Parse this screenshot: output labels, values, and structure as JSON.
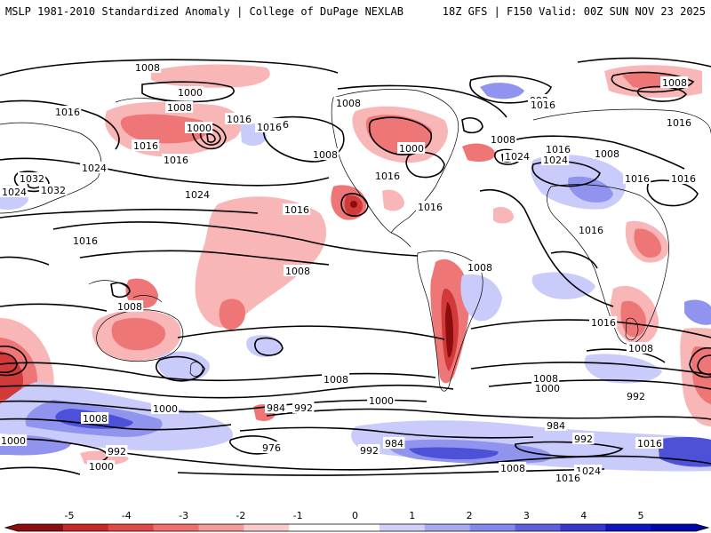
{
  "header": {
    "left_title": "MSLP 1981-2010 Standardized Anomaly | College of DuPage NEXLAB",
    "right_title": "18Z GFS | F150 Valid: 00Z SUN NOV 23 2025"
  },
  "colorbar": {
    "ticks": [
      "-5",
      "-4",
      "-3",
      "-2",
      "-1",
      "0",
      "1",
      "2",
      "3",
      "4",
      "5"
    ],
    "colors": [
      "#8b0d0d",
      "#c62828",
      "#e04848",
      "#ef6f6f",
      "#f59a9a",
      "#fbcaca",
      "#ffffff",
      "#ffffff",
      "#cfd1fb",
      "#a8abf4",
      "#8388ea",
      "#5c60dc",
      "#3438cf",
      "#1014c0",
      "#0005a8"
    ]
  },
  "map": {
    "contour_labels": [
      "1008",
      "1000",
      "1008",
      "1016",
      "1000",
      "1016",
      "1016",
      "1024",
      "1032",
      "1024",
      "1032",
      "1016",
      "1024",
      "1016",
      "1008",
      "1016",
      "1008",
      "1016",
      "1016",
      "1008",
      "1024",
      "1000",
      "992",
      "1016",
      "1008",
      "1016",
      "1024",
      "1016",
      "1008",
      "1008",
      "1008",
      "1016",
      "1016",
      "1016",
      "1016",
      "1016",
      "1016",
      "1008",
      "1008",
      "1000",
      "992",
      "1008",
      "1000",
      "1008",
      "1000",
      "984",
      "992",
      "976",
      "992",
      "984",
      "1008",
      "1000",
      "984",
      "992",
      "1016",
      "1008",
      "1024",
      "1016",
      "1000",
      "992"
    ],
    "colors": {
      "positive_light": "#f9b6b6",
      "positive_mid": "#ef7676",
      "positive_strong": "#d23a3a",
      "positive_max": "#8b0d0d",
      "negative_light": "#c9cbfa",
      "negative_mid": "#9094ee",
      "negative_strong": "#4d51d8",
      "contour": "#000000",
      "coastline": "#000000"
    }
  }
}
